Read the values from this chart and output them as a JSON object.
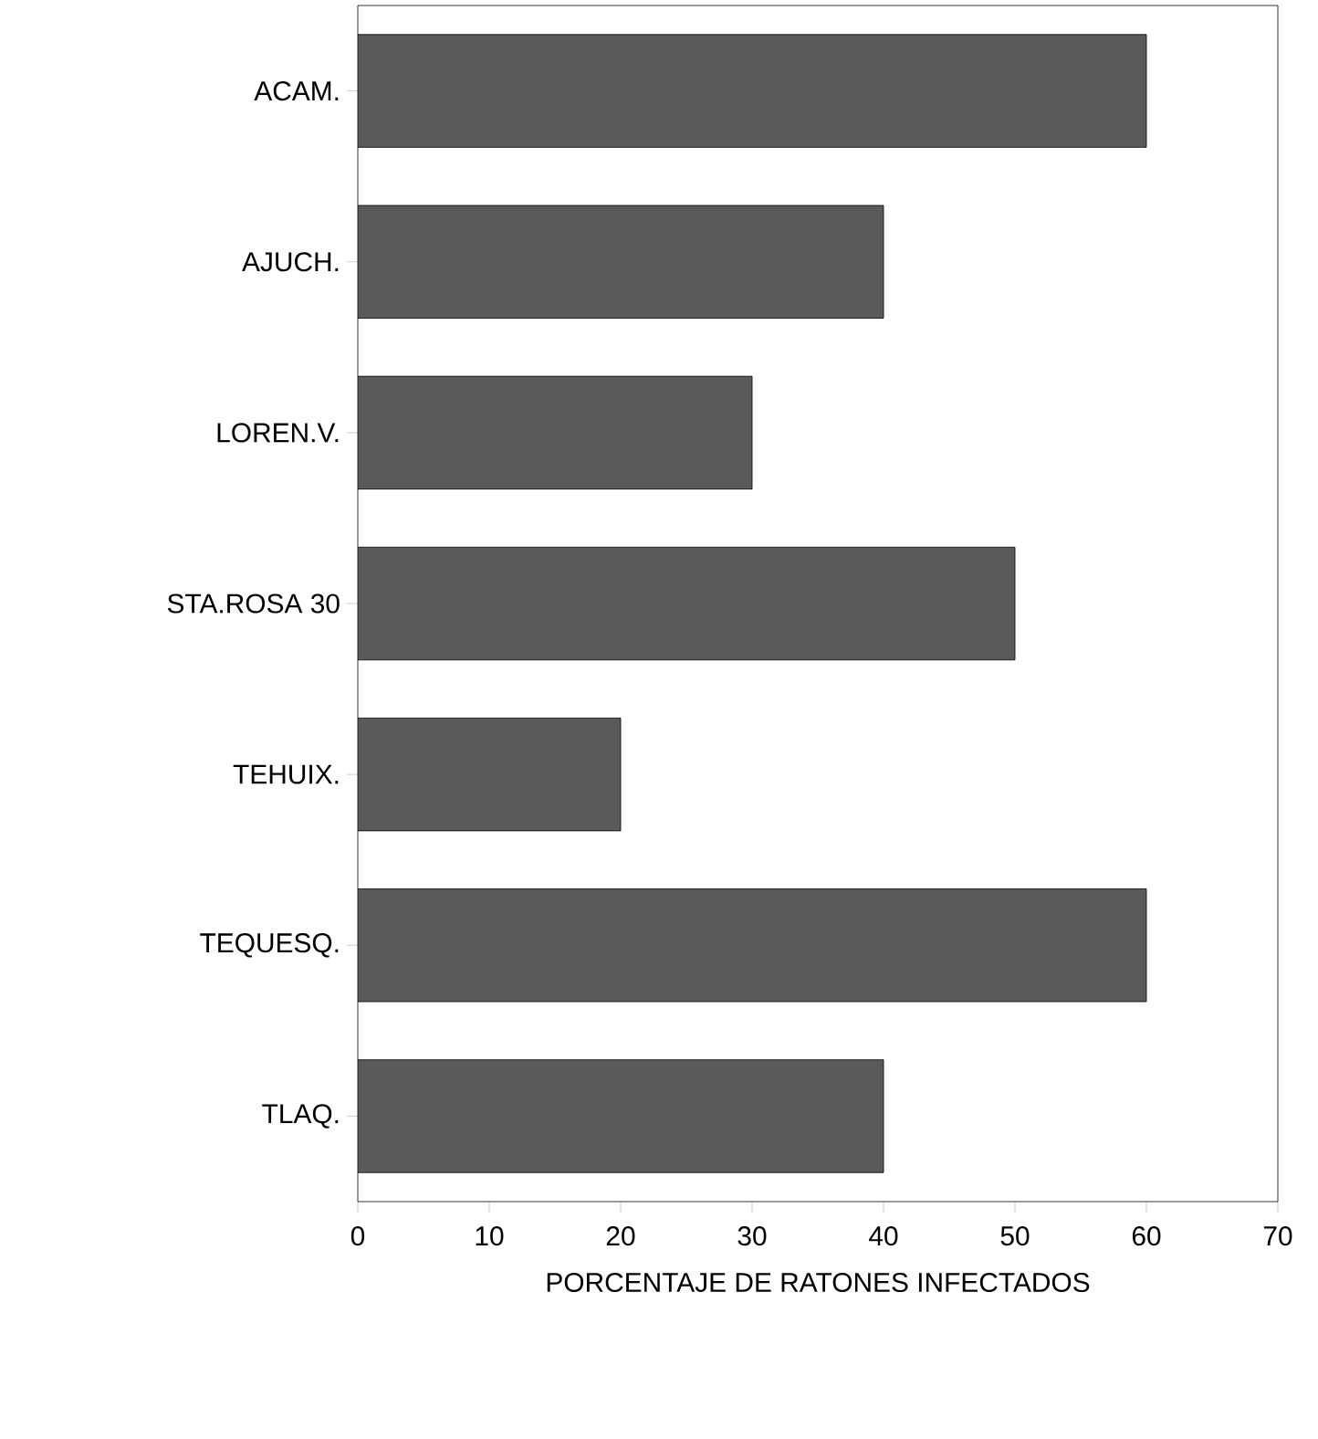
{
  "chart_data": {
    "type": "bar",
    "orientation": "horizontal",
    "xlabel": "PORCENTAJE DE RATONES INFECTADOS",
    "categories": [
      "ACAM.",
      "AJUCH.",
      "LOREN.V.",
      "STA.ROSA 30",
      "TEHUIX.",
      "TEQUESQ.",
      "TLAQ."
    ],
    "values": [
      60,
      40,
      30,
      50,
      20,
      60,
      40
    ],
    "color": "#5a5a5a",
    "xlim": [
      0,
      70
    ],
    "xticks": [
      0,
      10,
      20,
      30,
      40,
      50,
      60,
      70
    ],
    "grid": false
  }
}
